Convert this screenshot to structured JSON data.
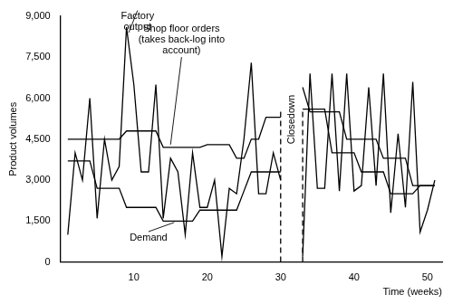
{
  "chart_data": {
    "type": "line",
    "x_label": "Time (weeks)",
    "y_label": "Product volumes",
    "x": [
      1,
      2,
      3,
      4,
      5,
      6,
      7,
      8,
      9,
      10,
      11,
      12,
      13,
      14,
      15,
      16,
      17,
      18,
      19,
      20,
      21,
      22,
      23,
      24,
      25,
      26,
      27,
      28,
      29,
      30,
      31,
      32,
      33,
      34,
      35,
      36,
      37,
      38,
      39,
      40,
      41,
      42,
      43,
      44,
      45,
      46,
      47,
      48,
      49,
      50,
      51
    ],
    "series": [
      {
        "name": "Factory output",
        "color": "#000000",
        "line_style": "solid",
        "values": [
          1000,
          4000,
          3000,
          6000,
          1600,
          4500,
          3000,
          3500,
          8600,
          6500,
          3300,
          3300,
          6500,
          1600,
          3800,
          3300,
          1000,
          4000,
          2000,
          2000,
          3000,
          200,
          2700,
          2500,
          4500,
          7300,
          2500,
          2500,
          4000,
          3000,
          null,
          null,
          200,
          6900,
          2700,
          2700,
          6900,
          2600,
          6900,
          2600,
          2800,
          6400,
          2800,
          6900,
          1800,
          4700,
          2000,
          6600,
          1100,
          1900,
          3000
        ]
      },
      {
        "name": "Shop floor orders (takes back-log into account)",
        "color": "#000000",
        "line_style": "solid",
        "values": [
          4500,
          4500,
          4500,
          4500,
          4500,
          4500,
          4500,
          4500,
          4800,
          4800,
          4800,
          4800,
          4800,
          4200,
          4200,
          4200,
          4200,
          4200,
          4200,
          4300,
          4300,
          4300,
          4300,
          3800,
          3800,
          4500,
          4500,
          5300,
          5300,
          5300,
          null,
          null,
          6400,
          5500,
          5500,
          5500,
          5500,
          5500,
          4500,
          4500,
          4500,
          4500,
          4500,
          3800,
          3800,
          3800,
          3800,
          2800,
          2800,
          2800,
          2800
        ]
      },
      {
        "name": "Demand",
        "color": "#000000",
        "line_style": "solid",
        "values": [
          3700,
          3700,
          3700,
          3700,
          2700,
          2700,
          2700,
          2700,
          2000,
          2000,
          2000,
          2000,
          2000,
          1500,
          1500,
          1500,
          1500,
          1500,
          1900,
          1900,
          1900,
          1900,
          1900,
          1900,
          2600,
          3300,
          3300,
          3300,
          3300,
          3300,
          null,
          null,
          5600,
          5600,
          5600,
          5600,
          4000,
          4000,
          4000,
          4000,
          3300,
          3300,
          3300,
          3300,
          2500,
          2500,
          2500,
          2500,
          2800,
          2800,
          2800
        ]
      }
    ],
    "closedown": {
      "label": "Closedown",
      "x": [
        30,
        33
      ],
      "line_style": "dashed"
    },
    "xlim": [
      0,
      52
    ],
    "xticks": [
      10,
      20,
      30,
      40,
      50
    ],
    "ylim": [
      0,
      9000
    ],
    "yticks": [
      0,
      {
        "value": 1500,
        "label": "1,500"
      },
      {
        "value": 3000,
        "label": "3,000"
      },
      {
        "value": 4500,
        "label": "4,500"
      },
      {
        "value": 6000,
        "label": "6,000"
      },
      {
        "value": 7500,
        "label": "7,500"
      },
      {
        "value": 9000,
        "label": "9,000"
      }
    ],
    "grid": false
  }
}
